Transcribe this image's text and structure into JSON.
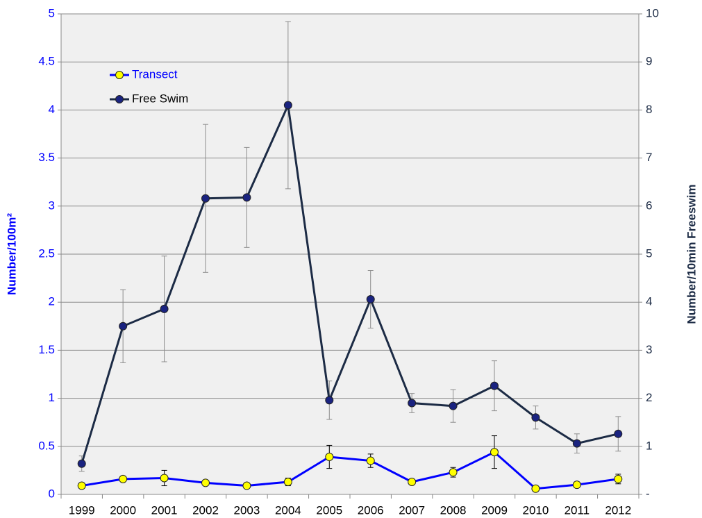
{
  "chart_data": {
    "type": "line",
    "categories": [
      "1999",
      "2000",
      "2001",
      "2002",
      "2003",
      "2004",
      "2005",
      "2006",
      "2007",
      "2008",
      "2009",
      "2010",
      "2011",
      "2012"
    ],
    "series": [
      {
        "name": "Transect",
        "color": "#0000ff",
        "marker_color": "#ffff00",
        "error_color": "#000000",
        "values": [
          0.09,
          0.16,
          0.17,
          0.12,
          0.09,
          0.13,
          0.39,
          0.35,
          0.13,
          0.23,
          0.44,
          0.06,
          0.1,
          0.16
        ],
        "errors": [
          0.01,
          0.02,
          0.08,
          0.02,
          0.01,
          0.04,
          0.12,
          0.07,
          0.02,
          0.05,
          0.17,
          0.01,
          0.03,
          0.05
        ]
      },
      {
        "name": "Free Swim",
        "color": "#1c2b45",
        "marker_color": "#1a2380",
        "error_color": "#8c8c8c",
        "axis": "y2",
        "values": [
          0.64,
          3.5,
          3.86,
          6.16,
          6.18,
          8.1,
          1.96,
          4.06,
          1.9,
          1.84,
          2.26,
          1.6,
          1.06,
          1.26
        ],
        "errors": [
          0.16,
          0.76,
          1.1,
          1.54,
          1.04,
          1.74,
          0.4,
          0.6,
          0.2,
          0.34,
          0.52,
          0.24,
          0.2,
          0.36
        ]
      }
    ],
    "ylabel": "Number/100m²",
    "y2label": "Number/10min Freeswim",
    "ylim": [
      0,
      5
    ],
    "yticks": [
      0,
      0.5,
      1,
      1.5,
      2,
      2.5,
      3,
      3.5,
      4,
      4.5,
      5
    ],
    "y2lim": [
      0,
      10
    ],
    "y2ticks": [
      {
        "value": 0,
        "label": "-"
      },
      1,
      2,
      3,
      4,
      5,
      6,
      7,
      8,
      9,
      10
    ],
    "grid": true,
    "legend": "upper left"
  }
}
